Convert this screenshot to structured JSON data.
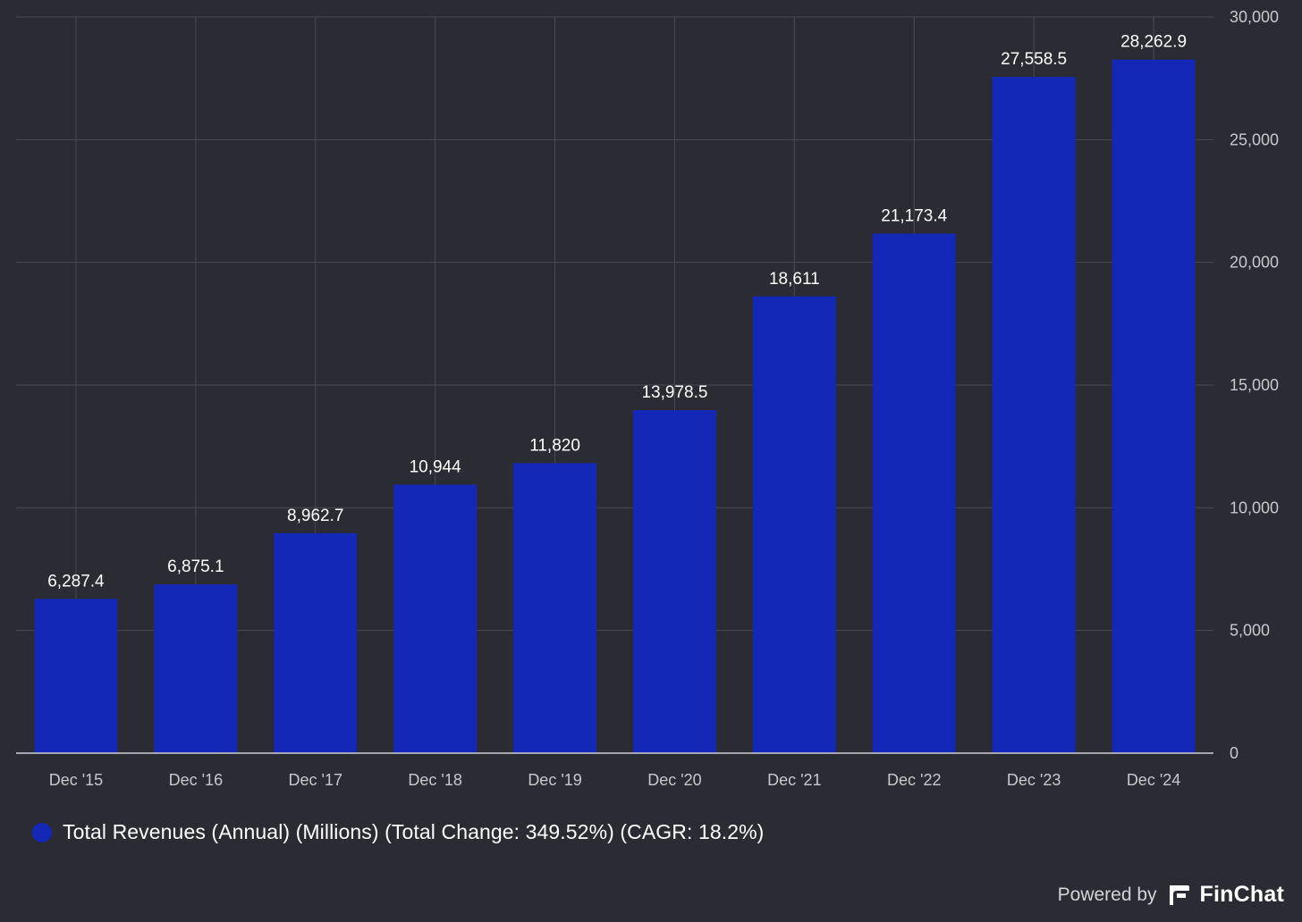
{
  "chart_data": {
    "type": "bar",
    "categories": [
      "Dec '15",
      "Dec '16",
      "Dec '17",
      "Dec '18",
      "Dec '19",
      "Dec '20",
      "Dec '21",
      "Dec '22",
      "Dec '23",
      "Dec '24"
    ],
    "series": [
      {
        "name": "Total Revenues (Annual) (Millions) (Total Change: 349.52%) (CAGR: 18.2%)",
        "values": [
          6287.4,
          6875.1,
          8962.7,
          10944,
          11820,
          13978.5,
          18611,
          21173.4,
          27558.5,
          28262.9
        ],
        "labels": [
          "6,287.4",
          "6,875.1",
          "8,962.7",
          "10,944",
          "11,820",
          "13,978.5",
          "18,611",
          "21,173.4",
          "27,558.5",
          "28,262.9"
        ]
      }
    ],
    "y_ticks": [
      0,
      5000,
      10000,
      15000,
      20000,
      25000,
      30000
    ],
    "y_tick_labels": [
      "0",
      "5,000",
      "10,000",
      "15,000",
      "20,000",
      "25,000",
      "30,000"
    ],
    "ylim": [
      0,
      30000
    ],
    "y_axis_position": "right",
    "grid": true,
    "legend_position": "bottom-left",
    "colors": {
      "background": "#2b2b33",
      "bar": "#1428b8",
      "grid": "#4a4a52",
      "axis": "#d0d0d4",
      "label": "#ffffff",
      "tick_label": "#c8c8cc"
    }
  },
  "legend": {
    "label": "Total Revenues (Annual) (Millions) (Total Change: 349.52%) (CAGR: 18.2%)"
  },
  "branding": {
    "powered_by": "Powered by",
    "name": "FinChat",
    "icon": "finchat-logo-icon"
  }
}
